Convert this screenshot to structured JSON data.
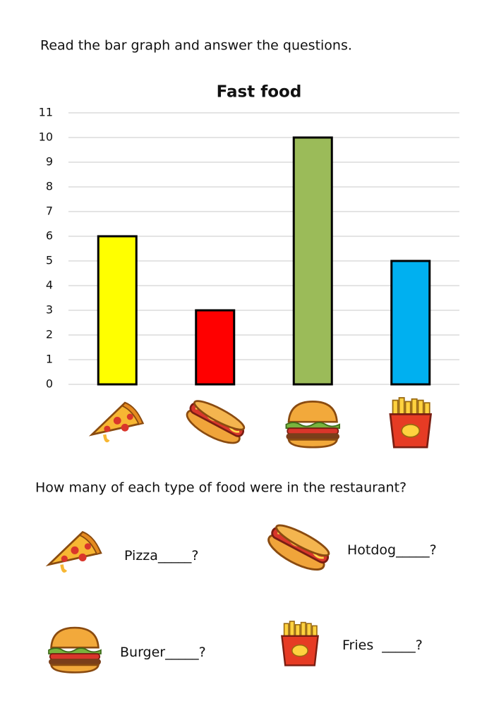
{
  "instruction": "Read the bar graph and answer the questions.",
  "chart_data": {
    "type": "bar",
    "title": "Fast food",
    "categories": [
      null,
      null,
      null,
      null
    ],
    "values": [
      6,
      3,
      10,
      5
    ],
    "colors": [
      "#ffff00",
      "#ff0000",
      "#9bbb59",
      "#00b0f0"
    ],
    "ylim": [
      0,
      11
    ],
    "yticks": [
      0,
      1,
      2,
      3,
      4,
      5,
      6,
      7,
      8,
      9,
      10,
      11
    ],
    "grid": true
  },
  "question": "How many of each type of food were in the restaurant?",
  "answers": [
    {
      "label": "Pizza",
      "blank": "_____?"
    },
    {
      "label": "Hotdog",
      "blank": "_____?"
    },
    {
      "label": "Burger",
      "blank": "_____?"
    },
    {
      "label": "Fries",
      "blank": "_____?"
    }
  ]
}
